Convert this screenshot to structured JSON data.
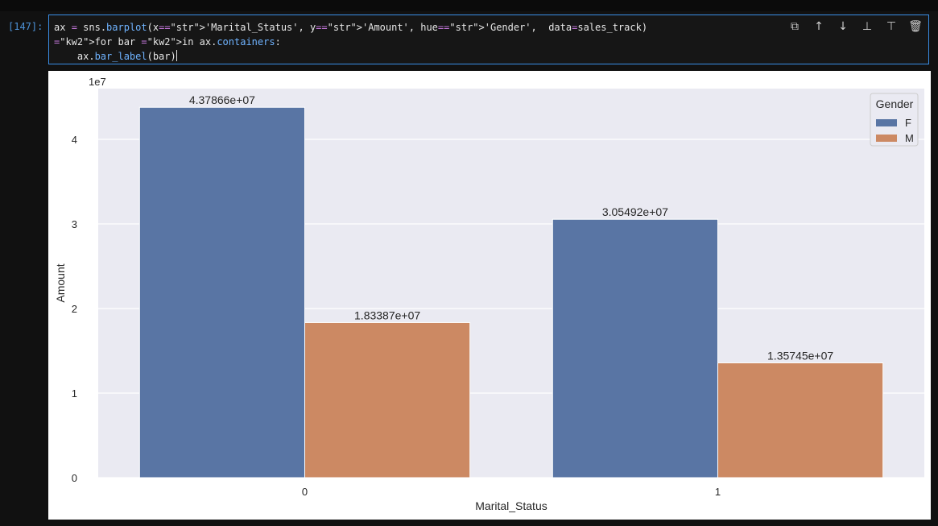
{
  "cell": {
    "prompt": "[147]:",
    "code_lines": [
      "ax = sns.barplot(x='Marital_Status', y='Amount', hue='Gender',  data=sales_track)",
      "for bar in ax.containers:",
      "    ax.bar_label(bar)"
    ]
  },
  "toolbar": {
    "items": [
      {
        "name": "duplicate-icon",
        "glyph": "⧉"
      },
      {
        "name": "move-up-icon",
        "glyph": "↑"
      },
      {
        "name": "move-down-icon",
        "glyph": "↓"
      },
      {
        "name": "insert-above-icon",
        "glyph": "⊥"
      },
      {
        "name": "insert-below-icon",
        "glyph": "⊤"
      },
      {
        "name": "delete-icon",
        "glyph": "🗑"
      }
    ]
  },
  "chart_data": {
    "type": "bar",
    "title": "",
    "xlabel": "Marital_Status",
    "ylabel": "Amount",
    "y_offset_label": "1e7",
    "categories": [
      "0",
      "1"
    ],
    "y_ticks": [
      "0",
      "1",
      "2",
      "3",
      "4"
    ],
    "ylim": [
      0,
      4.6
    ],
    "grid": true,
    "legend": {
      "title": "Gender",
      "placement": "top-right"
    },
    "series": [
      {
        "name": "F",
        "color": "#5975a4",
        "values": [
          4.37866,
          3.05492
        ],
        "labels": [
          "4.37866e+07",
          "3.05492e+07"
        ]
      },
      {
        "name": "M",
        "color": "#cc8963",
        "values": [
          1.83387,
          1.35745
        ],
        "labels": [
          "1.83387e+07",
          "1.35745e+07"
        ]
      }
    ]
  }
}
